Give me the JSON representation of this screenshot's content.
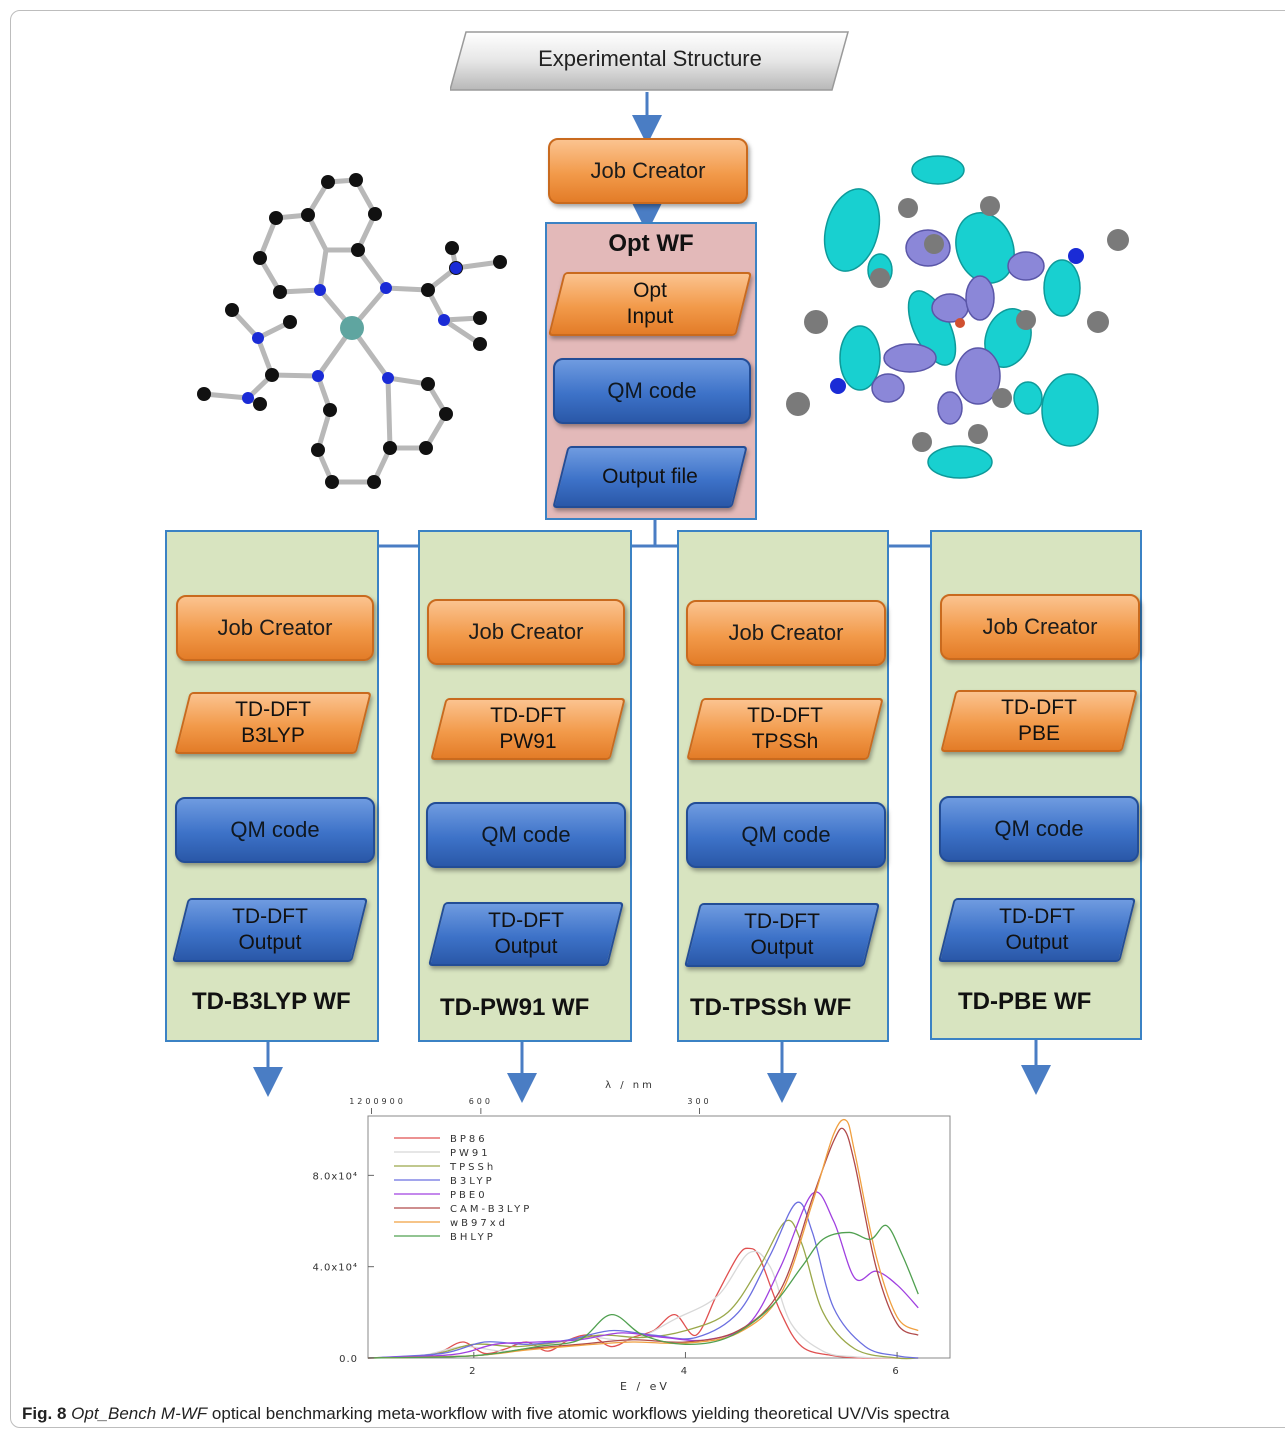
{
  "top": {
    "experimental_structure": "Experimental Structure"
  },
  "opt": {
    "job_creator": "Job Creator",
    "wf_title": "Opt WF",
    "input": "Opt\nInput",
    "qm_code": "QM code",
    "output": "Output file"
  },
  "workflows": [
    {
      "job_creator": "Job Creator",
      "method": "TD-DFT\nB3LYP",
      "qm_code": "QM code",
      "output": "TD-DFT\nOutput",
      "title": "TD-B3LYP WF"
    },
    {
      "job_creator": "Job Creator",
      "method": "TD-DFT\nPW91",
      "qm_code": "QM code",
      "output": "TD-DFT\nOutput",
      "title": "TD-PW91 WF"
    },
    {
      "job_creator": "Job Creator",
      "method": "TD-DFT\nTPSSh",
      "qm_code": "QM code",
      "output": "TD-DFT\nOutput",
      "title": "TD-TPSSh WF"
    },
    {
      "job_creator": "Job Creator",
      "method": "TD-DFT\nPBE",
      "qm_code": "QM code",
      "output": "TD-DFT\nOutput",
      "title": "TD-PBE WF"
    }
  ],
  "chart_data": {
    "type": "line",
    "title": "",
    "xlabel": "E / eV",
    "top_xlabel": "λ / nm",
    "x_ticks": [
      "2",
      "4",
      "6"
    ],
    "top_ticks": [
      "1200900",
      "600",
      "300"
    ],
    "y_ticks": [
      "0.0",
      "4.0x10⁴",
      "8.0x10⁴"
    ],
    "xlim": [
      1.0,
      6.5
    ],
    "ylim": [
      0,
      106000
    ],
    "series": [
      {
        "name": "BP86",
        "color": "#e05050",
        "x": [
          1.0,
          1.5,
          1.7,
          1.9,
          2.1,
          2.3,
          2.5,
          2.7,
          2.9,
          3.1,
          3.3,
          3.5,
          3.7,
          3.9,
          4.1,
          4.3,
          4.5,
          4.6,
          4.7,
          4.9,
          5.1,
          5.4,
          5.7,
          6.0,
          6.2
        ],
        "y": [
          0,
          500,
          3000,
          7000,
          2000,
          4000,
          7000,
          3000,
          8000,
          10000,
          5000,
          9000,
          12000,
          19000,
          10000,
          28000,
          45000,
          48000,
          44000,
          20000,
          5000,
          1000,
          0,
          0,
          0
        ]
      },
      {
        "name": "PW91",
        "color": "#d8d8d8",
        "x": [
          1.0,
          1.5,
          1.9,
          2.3,
          2.7,
          3.1,
          3.5,
          3.9,
          4.3,
          4.6,
          4.8,
          5.0,
          5.3,
          5.6,
          6.0,
          6.2
        ],
        "y": [
          0,
          1000,
          5000,
          3000,
          6000,
          9000,
          8000,
          17000,
          27000,
          46000,
          40000,
          15000,
          3000,
          500,
          0,
          0
        ]
      },
      {
        "name": "TPSSh",
        "color": "#9aa84a",
        "x": [
          1.0,
          1.6,
          2.0,
          2.4,
          2.8,
          3.2,
          3.6,
          4.0,
          4.4,
          4.7,
          4.95,
          5.1,
          5.3,
          5.6,
          6.0,
          6.2
        ],
        "y": [
          0,
          1500,
          6000,
          5000,
          7000,
          10000,
          9000,
          12000,
          20000,
          40000,
          60000,
          50000,
          20000,
          4000,
          0,
          0
        ]
      },
      {
        "name": "B3LYP",
        "color": "#6b6fe0",
        "x": [
          1.0,
          1.7,
          2.1,
          2.5,
          2.9,
          3.3,
          3.7,
          4.1,
          4.5,
          4.8,
          5.05,
          5.2,
          5.4,
          5.7,
          6.0,
          6.2
        ],
        "y": [
          0,
          2000,
          7000,
          6000,
          8000,
          12000,
          10000,
          9000,
          20000,
          45000,
          68000,
          55000,
          22000,
          5000,
          1000,
          0
        ]
      },
      {
        "name": "PBE0",
        "color": "#a040e0",
        "x": [
          1.0,
          1.8,
          2.2,
          2.6,
          3.0,
          3.4,
          3.8,
          4.2,
          4.6,
          4.9,
          5.2,
          5.4,
          5.6,
          5.8,
          6.0,
          6.2
        ],
        "y": [
          0,
          1500,
          6000,
          7000,
          8000,
          11000,
          9000,
          8000,
          15000,
          40000,
          72000,
          60000,
          35000,
          38000,
          32000,
          22000
        ]
      },
      {
        "name": "CAM-B3LYP",
        "color": "#b04a4a",
        "x": [
          1.0,
          2.0,
          2.5,
          3.0,
          3.5,
          4.0,
          4.5,
          4.9,
          5.2,
          5.4,
          5.5,
          5.6,
          5.8,
          6.0,
          6.2
        ],
        "y": [
          0,
          1000,
          4000,
          6000,
          8000,
          7000,
          12000,
          30000,
          70000,
          95000,
          100000,
          85000,
          40000,
          15000,
          10000
        ]
      },
      {
        "name": "wB97xd",
        "color": "#f0a040",
        "x": [
          1.0,
          2.0,
          2.5,
          3.0,
          3.5,
          4.0,
          4.5,
          4.9,
          5.2,
          5.4,
          5.52,
          5.6,
          5.8,
          6.0,
          6.2
        ],
        "y": [
          0,
          1000,
          3500,
          5500,
          7000,
          6500,
          11000,
          28000,
          68000,
          98000,
          104000,
          90000,
          45000,
          18000,
          12000
        ]
      },
      {
        "name": "BHLYP",
        "color": "#50a050",
        "x": [
          1.0,
          2.0,
          2.6,
          3.0,
          3.3,
          3.6,
          4.0,
          4.4,
          4.8,
          5.1,
          5.3,
          5.55,
          5.75,
          5.9,
          6.05,
          6.2
        ],
        "y": [
          0,
          1000,
          5000,
          8000,
          19000,
          10000,
          6000,
          9000,
          22000,
          40000,
          52000,
          55000,
          52000,
          58000,
          45000,
          28000
        ]
      }
    ]
  },
  "caption": {
    "fig": "Fig. 8",
    "italic": "Opt_Bench M-WF",
    "text": "optical benchmarking meta-workflow with five atomic workflows yielding theoretical UV/Vis spectra"
  }
}
